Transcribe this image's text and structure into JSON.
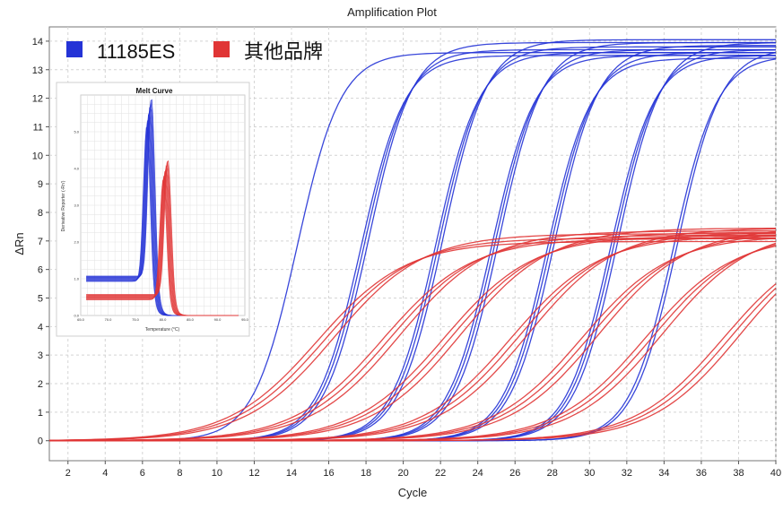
{
  "chart_data": {
    "type": "line",
    "title": "Amplification Plot",
    "xlabel": "Cycle",
    "ylabel": "ΔRn",
    "xlim": [
      1,
      40
    ],
    "ylim": [
      -0.7,
      14.5
    ],
    "x_ticks": [
      2,
      4,
      6,
      8,
      10,
      12,
      14,
      16,
      18,
      20,
      22,
      24,
      26,
      28,
      30,
      32,
      34,
      36,
      38,
      40
    ],
    "y_ticks": [
      0,
      1,
      2,
      3,
      4,
      5,
      6,
      7,
      8,
      9,
      10,
      11,
      12,
      13,
      14
    ],
    "grid": true,
    "legend_position": "top-left",
    "series": [
      {
        "name": "11185ES",
        "color": "#2433d6",
        "dilution_groups": [
          {
            "midpoint_cycle": 14.3,
            "plateau_dRn": 13.6,
            "curves": 1
          },
          {
            "midpoint_cycle": 17.9,
            "plateau_dRn": 13.7,
            "curves": 3
          },
          {
            "midpoint_cycle": 21.9,
            "plateau_dRn": 13.8,
            "curves": 3
          },
          {
            "midpoint_cycle": 24.9,
            "plateau_dRn": 13.7,
            "curves": 3
          },
          {
            "midpoint_cycle": 27.9,
            "plateau_dRn": 13.6,
            "curves": 3
          },
          {
            "midpoint_cycle": 31.3,
            "plateau_dRn": 13.7,
            "curves": 3
          },
          {
            "midpoint_cycle": 34.5,
            "plateau_dRn": 13.5,
            "curves": 2
          }
        ]
      },
      {
        "name": "其他品牌",
        "color": "#e03535",
        "dilution_groups": [
          {
            "midpoint_cycle": 15.8,
            "plateau_dRn": 7.1,
            "curves": 3
          },
          {
            "midpoint_cycle": 19.3,
            "plateau_dRn": 7.2,
            "curves": 3
          },
          {
            "midpoint_cycle": 22.6,
            "plateau_dRn": 7.3,
            "curves": 3
          },
          {
            "midpoint_cycle": 26.2,
            "plateau_dRn": 7.3,
            "curves": 3
          },
          {
            "midpoint_cycle": 30.0,
            "plateau_dRn": 7.3,
            "curves": 3
          },
          {
            "midpoint_cycle": 33.4,
            "plateau_dRn": 7.3,
            "curves": 3
          },
          {
            "midpoint_cycle": 37.6,
            "plateau_dRn": 7.3,
            "curves": 3
          }
        ]
      }
    ],
    "inset": {
      "type": "line",
      "title": "Melt Curve",
      "xlabel": "Temperature (°C)",
      "ylabel": "Derivative Reporter (-Rn')",
      "xlim": [
        65,
        95
      ],
      "ylim": [
        0,
        6
      ],
      "x_ticks": [
        65.0,
        70.0,
        75.0,
        80.0,
        85.0,
        90.0,
        95.0
      ],
      "y_ticks": [
        0.0,
        1.0,
        2.0,
        3.0,
        4.0,
        5.0
      ],
      "peaks": [
        {
          "series": "11185ES",
          "tm": 77.5,
          "height": 5.6,
          "baseline": 1.0
        },
        {
          "series": "其他品牌",
          "tm": 80.5,
          "height": 4.0,
          "baseline": 0.5
        }
      ]
    }
  }
}
